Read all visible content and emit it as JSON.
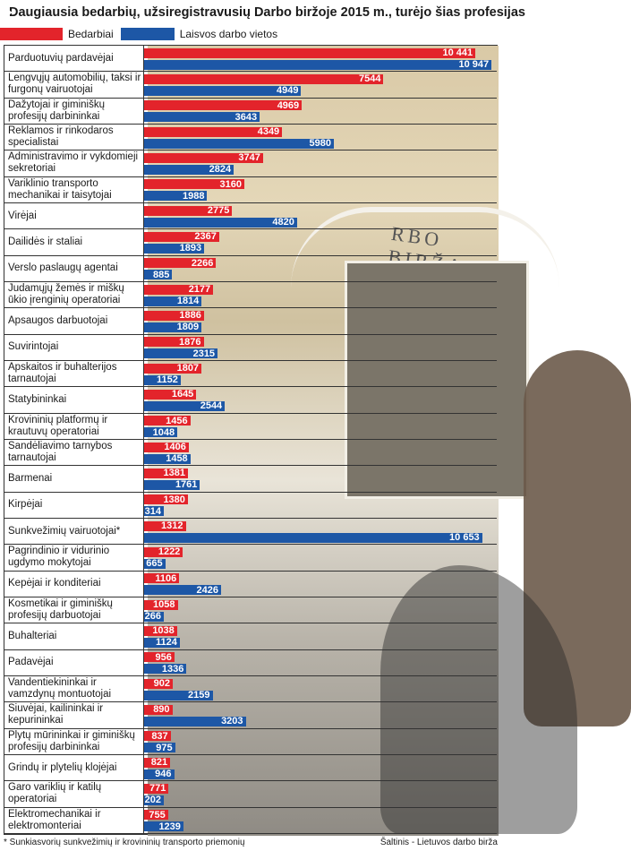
{
  "title": "Daugiausia bedarbių, užsiregistravusių Darbo biržoje 2015 m., turėjo šias profesijas",
  "legend": {
    "unemployed": "Bedarbiai",
    "vacancies": "Laisvos darbo vietos"
  },
  "photo_sign_text": "RBO BIRŽA",
  "footnote": "* Sunkiasvorių sunkvežimių ir krovininių transporto priemonių",
  "source": "Šaltinis - Lietuvos darbo birža",
  "colors": {
    "unemployed": "#e3242b",
    "vacancies": "#1d57a6"
  },
  "chart_data": {
    "type": "bar",
    "orientation": "horizontal",
    "title": "Daugiausia bedarbių, užsiregistravusių Darbo biržoje 2015 m., turėjo šias profesijas",
    "xlim": [
      0,
      11000
    ],
    "categories": [
      "Parduotuvių pardavėjai",
      "Lengvųjų automobilių, taksi ir furgonų vairuotojai",
      "Dažytojai ir giminiškų profesijų darbininkai",
      "Reklamos ir rinkodaros specialistai",
      "Administravimo ir vykdomieji sekretoriai",
      "Variklinio transporto mechanikai ir taisytojai",
      "Virėjai",
      "Dailidės ir staliai",
      "Verslo paslaugų agentai",
      "Judamųjų žemės ir miškų ūkio įrenginių operatoriai",
      "Apsaugos darbuotojai",
      "Suvirintojai",
      "Apskaitos ir buhalterijos tarnautojai",
      "Statybininkai",
      "Krovininių platformų ir krautuvų operatoriai",
      "Sandėliavimo tarnybos tarnautojai",
      "Barmenai",
      "Kirpėjai",
      "Sunkvežimių vairuotojai*",
      "Pagrindinio ir vidurinio ugdymo mokytojai",
      "Kepėjai ir konditeriai",
      "Kosmetikai ir giminiškų profesijų darbuotojai",
      "Buhalteriai",
      "Padavėjai",
      "Vandentiekininkai ir vamzdynų montuotojai",
      "Siuvėjai, kailininkai ir kepurininkai",
      "Plytų mūrininkai ir giminiškų profesijų darbininkai",
      "Grindų ir plytelių klojėjai",
      "Garo variklių ir katilų operatoriai",
      "Elektromechanikai ir elektromonteriai"
    ],
    "series": [
      {
        "name": "Bedarbiai",
        "values": [
          10441,
          7544,
          4969,
          4349,
          3747,
          3160,
          2775,
          2367,
          2266,
          2177,
          1886,
          1876,
          1807,
          1645,
          1456,
          1406,
          1381,
          1380,
          1312,
          1222,
          1106,
          1058,
          1038,
          956,
          902,
          890,
          837,
          821,
          771,
          755
        ],
        "labels": [
          "10 441",
          "7544",
          "4969",
          "4349",
          "3747",
          "3160",
          "2775",
          "2367",
          "2266",
          "2177",
          "1886",
          "1876",
          "1807",
          "1645",
          "1456",
          "1406",
          "1381",
          "1380",
          "1312",
          "1222",
          "1106",
          "1058",
          "1038",
          "956",
          "902",
          "890",
          "837",
          "821",
          "771",
          "755"
        ]
      },
      {
        "name": "Laisvos darbo vietos",
        "values": [
          10947,
          4949,
          3643,
          5980,
          2824,
          1988,
          4820,
          1893,
          885,
          1814,
          1809,
          2315,
          1152,
          2544,
          1048,
          1458,
          1761,
          314,
          10653,
          665,
          2426,
          266,
          1124,
          1336,
          2159,
          3203,
          975,
          946,
          202,
          1239
        ],
        "labels": [
          "10 947",
          "4949",
          "3643",
          "5980",
          "2824",
          "1988",
          "4820",
          "1893",
          "885",
          "1814",
          "1809",
          "2315",
          "1152",
          "2544",
          "1048",
          "1458",
          "1761",
          "314",
          "10 653",
          "665",
          "2426",
          "266",
          "1124",
          "1336",
          "2159",
          "3203",
          "975",
          "946",
          "202",
          "1239"
        ]
      }
    ]
  }
}
